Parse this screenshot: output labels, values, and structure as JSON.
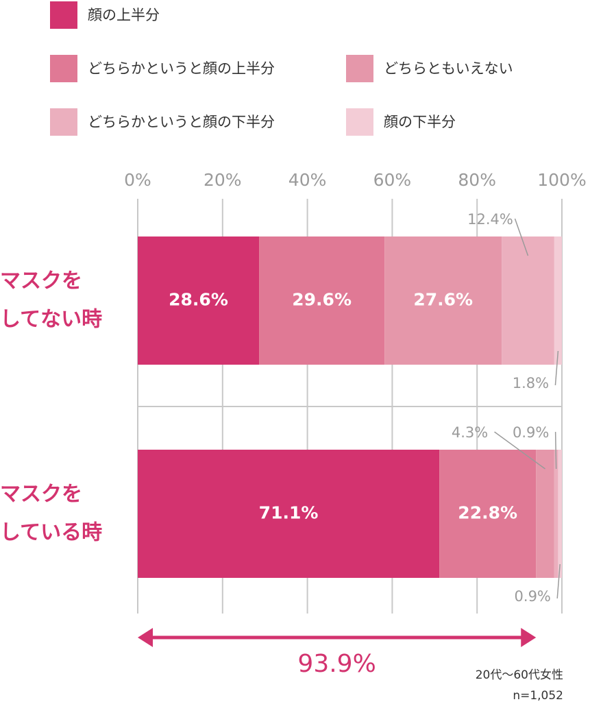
{
  "chart_data": {
    "type": "stacked-bar-horizontal",
    "categories": [
      "マスクを\nしてない時",
      "マスクを\nしている時"
    ],
    "series": [
      {
        "name": "顔の上半分",
        "color": "#d3336f",
        "values": [
          28.6,
          71.1
        ],
        "value_labels": [
          "28.6%",
          "71.1%"
        ]
      },
      {
        "name": "どちらかというと顔の上半分",
        "color": "#e07995",
        "values": [
          29.6,
          22.8
        ],
        "value_labels": [
          "29.6%",
          "22.8%"
        ]
      },
      {
        "name": "どちらともいえない",
        "color": "#e597aa",
        "values": [
          27.6,
          4.3
        ],
        "value_labels": [
          "27.6%",
          "4.3%"
        ]
      },
      {
        "name": "どちらかというと顔の下半分",
        "color": "#ebafbe",
        "values": [
          12.4,
          0.9
        ],
        "value_labels": [
          "12.4%",
          "0.9%"
        ]
      },
      {
        "name": "顔の下半分",
        "color": "#f3ccd6",
        "values": [
          1.8,
          0.9
        ],
        "value_labels": [
          "1.8%",
          "0.9%"
        ]
      }
    ],
    "xlim": [
      0,
      100
    ],
    "xticks": [
      {
        "value": 0,
        "label": "0%"
      },
      {
        "value": 20,
        "label": "20%"
      },
      {
        "value": 40,
        "label": "40%"
      },
      {
        "value": 60,
        "label": "60%"
      },
      {
        "value": 80,
        "label": "80%"
      },
      {
        "value": 100,
        "label": "100%"
      }
    ],
    "grid": true,
    "annotation": {
      "value": 93.9,
      "label": "93.9%"
    },
    "notes": [
      "20代〜60代女性",
      "n=1,052"
    ]
  }
}
